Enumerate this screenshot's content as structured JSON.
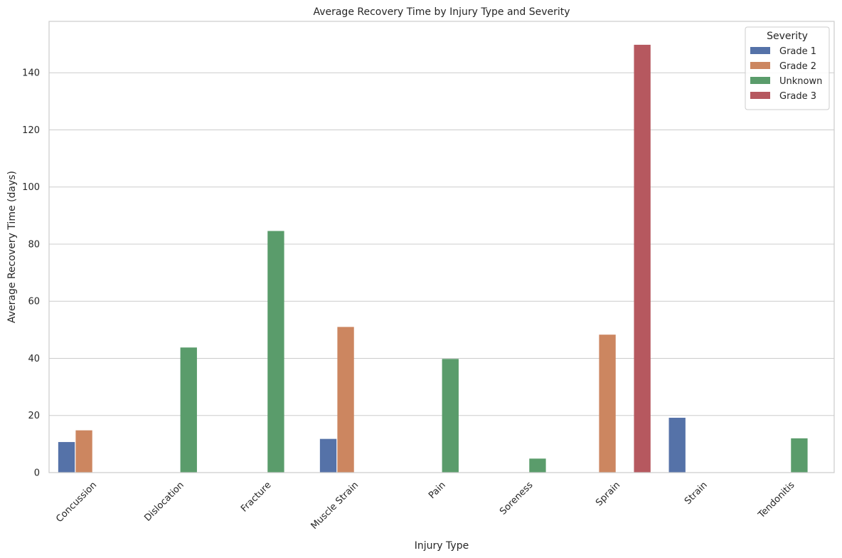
{
  "chart_data": {
    "type": "bar",
    "title": "Average Recovery Time by Injury Type and Severity",
    "xlabel": "Injury Type",
    "ylabel": "Average Recovery Time (days)",
    "ylim": [
      0,
      158
    ],
    "yticks": [
      0,
      20,
      40,
      60,
      80,
      100,
      120,
      140
    ],
    "grid": "horizontal",
    "legend_title": "Severity",
    "legend_position": "top-right",
    "categories": [
      "Concussion",
      "Dislocation",
      "Fracture",
      "Muscle Strain",
      "Pain",
      "Soreness",
      "Sprain",
      "Strain",
      "Tendonitis"
    ],
    "series": [
      {
        "name": "Grade 1",
        "color": "#5572a8",
        "values": [
          10.7,
          null,
          null,
          11.8,
          null,
          null,
          null,
          19.2,
          null
        ]
      },
      {
        "name": "Grade 2",
        "color": "#cc8660",
        "values": [
          14.8,
          null,
          null,
          51.0,
          null,
          null,
          48.3,
          null,
          null
        ]
      },
      {
        "name": "Unknown",
        "color": "#5a9c6b",
        "values": [
          null,
          43.8,
          84.6,
          null,
          39.8,
          4.9,
          null,
          null,
          12.0
        ]
      },
      {
        "name": "Grade 3",
        "color": "#b6585f",
        "values": [
          null,
          null,
          null,
          null,
          null,
          null,
          149.8,
          null,
          null
        ]
      }
    ]
  }
}
